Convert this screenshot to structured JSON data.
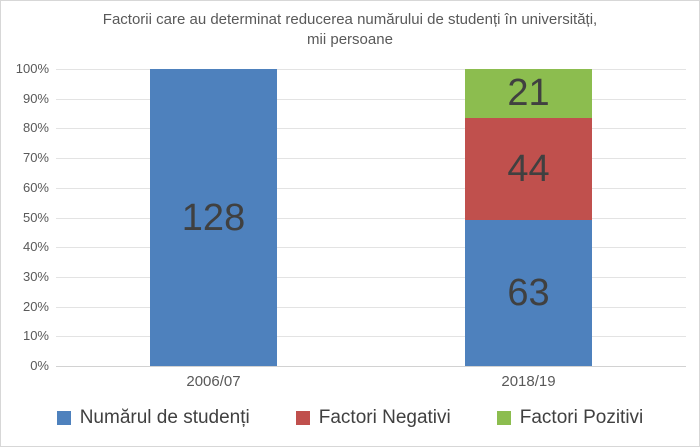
{
  "title": {
    "line1": "Factorii care au determinat reducerea numărului de studenți în universități,",
    "line2": "mii persoane"
  },
  "chart_data": {
    "type": "bar",
    "subtype": "stacked-100-percent",
    "title": "Factorii care au determinat reducerea numărului de studenți în universități, mii persoane",
    "categories": [
      "2006/07",
      "2018/19"
    ],
    "series": [
      {
        "name": "Numărul de studenți",
        "color": "#4E81BD",
        "values": [
          128,
          63
        ]
      },
      {
        "name": "Factori Negativi",
        "color": "#C0504D",
        "values": [
          null,
          44
        ]
      },
      {
        "name": "Factori Pozitivi",
        "color": "#8CBD4F",
        "values": [
          null,
          21
        ]
      }
    ],
    "y_axis": {
      "ticks": [
        "0%",
        "10%",
        "20%",
        "30%",
        "40%",
        "50%",
        "60%",
        "70%",
        "80%",
        "90%",
        "100%"
      ],
      "range": [
        0,
        100
      ],
      "gridlines": true
    },
    "legend_position": "bottom",
    "totals_per_category": [
      128,
      128
    ]
  },
  "colors": {
    "blue": "#4E81BD",
    "red": "#C0504D",
    "green": "#8CBD4F",
    "gridline": "#e3e3e3",
    "axis_text": "#595959",
    "value_label": "#404040",
    "border": "#d7d7d7"
  }
}
